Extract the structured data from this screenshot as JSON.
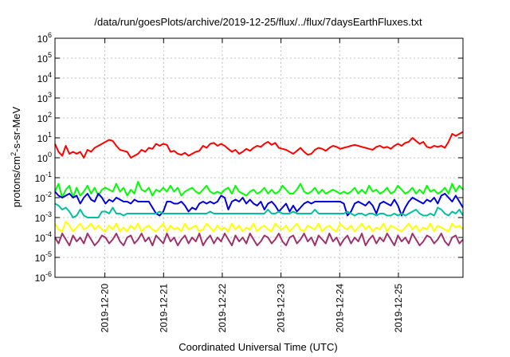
{
  "chart_data": {
    "type": "line",
    "title": "/data/run/goesPlots/archive/2019-12-25/flux/../flux/7daysEarthFluxes.txt",
    "xlabel": "Coordinated Universal Time (UTC)",
    "ylabel": "protons/cm2-s-sr-MeV",
    "ylabel_parts": {
      "base": "protons/cm",
      "sup": "2",
      "rest": "-s-sr-MeV"
    },
    "yscale": "log",
    "ylim_exp": [
      -6,
      6
    ],
    "ytick_labels": [
      {
        "base": "10",
        "exp": "-6"
      },
      {
        "base": "10",
        "exp": "-5"
      },
      {
        "base": "10",
        "exp": "-4"
      },
      {
        "base": "10",
        "exp": "-3"
      },
      {
        "base": "10",
        "exp": "-2"
      },
      {
        "base": "10",
        "exp": "-1"
      },
      {
        "base": "10",
        "exp": "0"
      },
      {
        "base": "10",
        "exp": "1"
      },
      {
        "base": "10",
        "exp": "2"
      },
      {
        "base": "10",
        "exp": "3"
      },
      {
        "base": "10",
        "exp": "4"
      },
      {
        "base": "10",
        "exp": "5"
      },
      {
        "base": "10",
        "exp": "6"
      }
    ],
    "xlim_days": [
      -0.85,
      6.1
    ],
    "xticks": [
      {
        "day": 0,
        "label": "2019-12-20"
      },
      {
        "day": 1,
        "label": "2019-12-21"
      },
      {
        "day": 2,
        "label": "2019-12-22"
      },
      {
        "day": 3,
        "label": "2019-12-23"
      },
      {
        "day": 4,
        "label": "2019-12-24"
      },
      {
        "day": 5,
        "label": "2019-12-25"
      }
    ],
    "grid": true,
    "series": [
      {
        "color": "#ff0000",
        "log10_values": [
          0.7,
          0.3,
          0.1,
          0.6,
          0.2,
          0.3,
          0.2,
          0.3,
          0.0,
          0.4,
          0.3,
          0.5,
          0.6,
          0.7,
          0.8,
          0.9,
          0.85,
          0.6,
          0.4,
          0.35,
          0.3,
          0.0,
          0.1,
          0.2,
          0.4,
          0.3,
          0.5,
          0.45,
          0.7,
          0.6,
          0.7,
          0.65,
          0.3,
          0.35,
          0.2,
          0.15,
          0.25,
          0.1,
          0.2,
          0.3,
          0.35,
          0.6,
          0.5,
          0.7,
          0.75,
          0.6,
          0.7,
          0.6,
          0.45,
          0.3,
          0.4,
          0.2,
          0.3,
          0.45,
          0.35,
          0.5,
          0.6,
          0.55,
          0.7,
          0.8,
          0.65,
          0.75,
          0.5,
          0.45,
          0.4,
          0.3,
          0.2,
          0.35,
          0.5,
          0.3,
          0.15,
          0.2,
          0.4,
          0.5,
          0.45,
          0.35,
          0.5,
          0.6,
          0.55,
          0.45,
          0.5,
          0.55,
          0.6,
          0.65,
          0.6,
          0.55,
          0.5,
          0.45,
          0.4,
          0.55,
          0.6,
          0.5,
          0.55,
          0.45,
          0.6,
          0.7,
          0.6,
          0.75,
          0.8,
          1.0,
          0.85,
          0.7,
          0.8,
          0.55,
          0.5,
          0.6,
          0.55,
          0.6,
          0.5,
          0.8,
          1.2,
          1.1,
          1.2,
          1.3
        ]
      },
      {
        "color": "#00ff00",
        "log10_values": [
          -1.7,
          -1.3,
          -2.0,
          -1.6,
          -1.4,
          -2.0,
          -1.5,
          -1.9,
          -1.7,
          -1.4,
          -1.8,
          -1.5,
          -1.9,
          -1.6,
          -1.5,
          -1.6,
          -1.7,
          -1.3,
          -1.7,
          -1.5,
          -1.9,
          -1.6,
          -1.8,
          -1.2,
          -1.6,
          -1.7,
          -1.5,
          -1.9,
          -1.6,
          -1.7,
          -1.5,
          -1.7,
          -1.4,
          -1.7,
          -1.5,
          -1.9,
          -1.7,
          -1.6,
          -1.5,
          -1.7,
          -1.8,
          -1.6,
          -1.4,
          -1.7,
          -1.8,
          -1.7,
          -1.8,
          -1.6,
          -1.5,
          -1.8,
          -1.4,
          -1.7,
          -1.8,
          -1.9,
          -1.7,
          -1.6,
          -1.8,
          -1.7,
          -1.5,
          -1.8,
          -1.6,
          -1.8,
          -1.7,
          -1.4,
          -1.6,
          -1.8,
          -1.8,
          -1.6,
          -1.3,
          -1.7,
          -1.8,
          -1.7,
          -1.5,
          -1.8,
          -1.6,
          -1.8,
          -1.7,
          -1.6,
          -1.7,
          -1.8,
          -1.7,
          -1.8,
          -1.7,
          -1.5,
          -1.8,
          -1.6,
          -1.8,
          -1.4,
          -1.7,
          -1.6,
          -1.8,
          -1.7,
          -1.5,
          -1.8,
          -1.7,
          -1.4,
          -1.6,
          -1.8,
          -1.7,
          -1.5,
          -1.8,
          -1.6,
          -1.8,
          -1.4,
          -1.7,
          -1.6,
          -1.8,
          -1.7,
          -1.5,
          -1.8,
          -1.3,
          -1.7,
          -1.4,
          -1.6
        ]
      },
      {
        "color": "#0000dd",
        "log10_values": [
          -1.7,
          -1.9,
          -2.0,
          -1.9,
          -1.8,
          -2.0,
          -1.9,
          -2.3,
          -2.0,
          -1.8,
          -2.1,
          -2.2,
          -1.8,
          -2.0,
          -2.3,
          -2.1,
          -2.2,
          -2.0,
          -2.1,
          -2.2,
          -2.2,
          -2.3,
          -2.1,
          -2.2,
          -2.2,
          -2.2,
          -2.2,
          -2.5,
          -2.8,
          -2.9,
          -2.7,
          -2.2,
          -2.2,
          -2.3,
          -2.3,
          -2.2,
          -2.4,
          -2.7,
          -2.5,
          -2.6,
          -2.3,
          -2.2,
          -2.3,
          -2.2,
          -2.3,
          -2.2,
          -1.9,
          -2.0,
          -2.6,
          -2.2,
          -2.1,
          -2.2,
          -2.0,
          -2.3,
          -2.1,
          -2.3,
          -2.4,
          -2.2,
          -2.6,
          -2.3,
          -2.2,
          -2.4,
          -2.7,
          -2.5,
          -2.3,
          -2.7,
          -2.4,
          -2.7,
          -2.5,
          -2.3,
          -2.2,
          -2.3,
          -2.2,
          -2.2,
          -2.2,
          -2.2,
          -2.2,
          -2.2,
          -2.2,
          -2.2,
          -2.3,
          -2.9,
          -2.7,
          -2.3,
          -2.2,
          -2.3,
          -2.4,
          -2.2,
          -2.4,
          -2.8,
          -2.3,
          -2.2,
          -2.3,
          -2.4,
          -2.1,
          -2.4,
          -2.9,
          -2.5,
          -2.2,
          -2.0,
          -2.1,
          -2.2,
          -2.3,
          -2.1,
          -2.2,
          -2.0,
          -2.3,
          -1.9,
          -1.8,
          -2.0,
          -2.2,
          -1.9,
          -2.2,
          -2.5
        ]
      },
      {
        "color": "#00c0a0",
        "log10_values": [
          -2.3,
          -2.4,
          -2.6,
          -2.5,
          -2.7,
          -3.0,
          -2.9,
          -2.6,
          -2.9,
          -3.0,
          -3.0,
          -3.0,
          -3.0,
          -2.7,
          -2.7,
          -2.8,
          -2.5,
          -2.8,
          -2.8,
          -2.9,
          -2.8,
          -2.8,
          -2.8,
          -2.8,
          -2.8,
          -2.8,
          -2.8,
          -2.8,
          -2.8,
          -2.7,
          -2.8,
          -2.8,
          -2.8,
          -2.8,
          -2.8,
          -2.8,
          -2.8,
          -2.8,
          -2.8,
          -2.8,
          -2.8,
          -2.8,
          -2.8,
          -2.7,
          -2.8,
          -2.8,
          -2.8,
          -2.8,
          -2.8,
          -2.8,
          -2.8,
          -2.8,
          -2.8,
          -2.8,
          -2.8,
          -2.8,
          -2.8,
          -2.8,
          -2.8,
          -2.6,
          -2.8,
          -2.8,
          -2.7,
          -2.8,
          -2.8,
          -2.8,
          -2.7,
          -2.8,
          -2.8,
          -2.8,
          -2.8,
          -2.8,
          -2.6,
          -2.8,
          -2.8,
          -2.8,
          -2.8,
          -2.8,
          -2.8,
          -2.8,
          -2.8,
          -2.7,
          -2.8,
          -2.9,
          -2.8,
          -2.8,
          -2.9,
          -2.8,
          -2.8,
          -2.9,
          -2.8,
          -2.8,
          -2.9,
          -2.9,
          -2.8,
          -2.9,
          -2.8,
          -2.9,
          -2.8,
          -2.7,
          -2.6,
          -2.8,
          -2.9,
          -2.9,
          -2.8,
          -2.9,
          -2.5,
          -2.6,
          -2.8,
          -2.9,
          -2.7,
          -2.8,
          -2.6,
          -2.9
        ]
      },
      {
        "color": "#ffff00",
        "log10_values": [
          -3.3,
          -3.6,
          -3.7,
          -3.2,
          -3.4,
          -3.7,
          -3.5,
          -3.3,
          -3.6,
          -3.5,
          -3.3,
          -3.6,
          -3.4,
          -3.6,
          -3.7,
          -3.4,
          -3.6,
          -3.3,
          -3.7,
          -3.5,
          -3.7,
          -3.4,
          -3.6,
          -3.3,
          -3.7,
          -3.5,
          -3.4,
          -3.6,
          -3.7,
          -3.5,
          -3.3,
          -3.7,
          -3.4,
          -3.6,
          -3.5,
          -3.7,
          -3.3,
          -3.6,
          -3.5,
          -3.4,
          -3.7,
          -3.6,
          -3.3,
          -3.5,
          -3.7,
          -3.4,
          -3.6,
          -3.5,
          -3.7,
          -3.3,
          -3.6,
          -3.4,
          -3.7,
          -3.5,
          -3.6,
          -3.3,
          -3.7,
          -3.5,
          -3.4,
          -3.6,
          -3.7,
          -3.3,
          -3.5,
          -3.6,
          -3.4,
          -3.7,
          -3.5,
          -3.3,
          -3.6,
          -3.7,
          -3.4,
          -3.5,
          -3.6,
          -3.3,
          -3.7,
          -3.5,
          -3.4,
          -3.6,
          -3.7,
          -3.3,
          -3.5,
          -3.6,
          -3.4,
          -3.7,
          -3.5,
          -3.3,
          -3.6,
          -3.4,
          -3.7,
          -3.5,
          -3.6,
          -3.3,
          -3.7,
          -3.4,
          -3.5,
          -3.6,
          -3.7,
          -3.5,
          -3.3,
          -3.6,
          -3.4,
          -3.7,
          -3.5,
          -3.6,
          -3.3,
          -3.7,
          -3.4,
          -3.5,
          -3.6,
          -3.7,
          -3.3,
          -3.5,
          -3.4,
          -3.6
        ]
      },
      {
        "color": "#a0306a",
        "log10_values": [
          -4.0,
          -4.3,
          -3.8,
          -4.1,
          -4.4,
          -3.9,
          -4.2,
          -4.0,
          -4.3,
          -3.8,
          -4.1,
          -4.4,
          -4.2,
          -3.9,
          -4.0,
          -4.3,
          -4.1,
          -3.8,
          -4.2,
          -4.4,
          -4.0,
          -3.9,
          -4.3,
          -4.1,
          -3.8,
          -4.2,
          -4.0,
          -4.4,
          -3.9,
          -4.1,
          -4.3,
          -3.8,
          -4.2,
          -4.0,
          -4.4,
          -4.1,
          -3.9,
          -4.3,
          -4.0,
          -4.2,
          -3.8,
          -4.4,
          -4.1,
          -3.9,
          -4.3,
          -4.0,
          -4.2,
          -3.8,
          -4.1,
          -4.4,
          -3.9,
          -4.2,
          -4.0,
          -4.3,
          -3.8,
          -4.1,
          -4.4,
          -4.2,
          -3.9,
          -4.0,
          -4.3,
          -4.1,
          -3.8,
          -4.2,
          -4.4,
          -4.0,
          -3.9,
          -4.3,
          -4.1,
          -3.8,
          -4.2,
          -4.0,
          -4.4,
          -3.9,
          -4.1,
          -4.3,
          -3.8,
          -4.2,
          -4.0,
          -4.4,
          -4.1,
          -3.9,
          -4.3,
          -4.0,
          -4.2,
          -3.8,
          -4.4,
          -4.1,
          -3.9,
          -4.3,
          -4.0,
          -4.2,
          -3.8,
          -4.1,
          -4.4,
          -3.9,
          -4.2,
          -4.0,
          -4.3,
          -3.8,
          -4.1,
          -4.4,
          -4.2,
          -3.9,
          -4.0,
          -4.3,
          -4.1,
          -3.8,
          -4.2,
          -4.4,
          -4.0,
          -3.9,
          -4.3,
          -4.1
        ]
      }
    ]
  }
}
